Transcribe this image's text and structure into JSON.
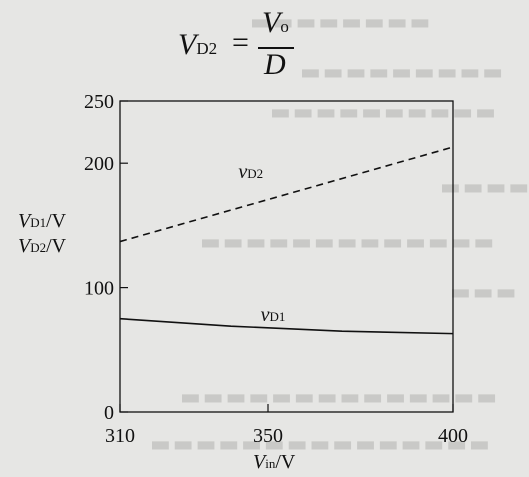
{
  "formula": {
    "lhs_main": "V",
    "lhs_sub": "D2",
    "equals": "=",
    "numerator_main": "V",
    "numerator_sub": "o",
    "denominator": "D"
  },
  "chart_data": {
    "type": "line",
    "xlabel_main": "V",
    "xlabel_sub": "in",
    "xlabel_unit": "/V",
    "ylabel_lines": [
      {
        "main": "V",
        "sub": "D1",
        "unit": "/V"
      },
      {
        "main": "V",
        "sub": "D2",
        "unit": "/V"
      }
    ],
    "xlim": [
      310,
      400
    ],
    "ylim": [
      0,
      250
    ],
    "x_ticks": [
      310,
      350,
      400
    ],
    "y_ticks": [
      0,
      100,
      200,
      250
    ],
    "grid": false,
    "series": [
      {
        "name_main": "v",
        "name_sub": "D2",
        "style": "dashed",
        "x": [
          310,
          400
        ],
        "y": [
          137,
          213
        ]
      },
      {
        "name_main": "v",
        "name_sub": "D1",
        "style": "solid",
        "x": [
          310,
          340,
          370,
          400
        ],
        "y": [
          75,
          69,
          65,
          63
        ]
      }
    ]
  }
}
